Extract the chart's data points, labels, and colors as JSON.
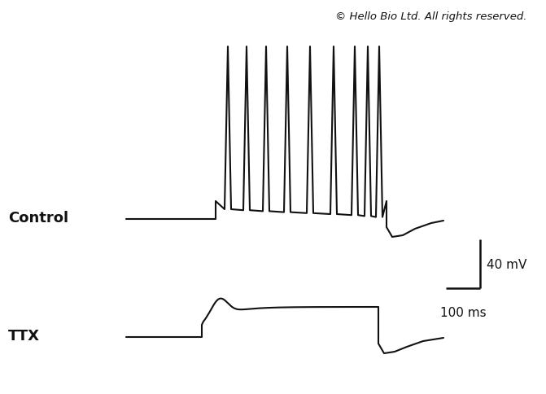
{
  "background_color": "#ffffff",
  "copyright_text": "© Hello Bio Ltd. All rights reserved.",
  "copyright_fontsize": 9.5,
  "control_label": "Control",
  "ttx_label": "TTX",
  "scale_bar_mv": "40 mV",
  "scale_bar_ms": "100 ms",
  "line_color": "#111111",
  "line_width": 1.5,
  "label_fontsize": 13,
  "label_fontweight": "bold",
  "fig_width": 6.71,
  "fig_height": 4.85,
  "dpi": 100
}
